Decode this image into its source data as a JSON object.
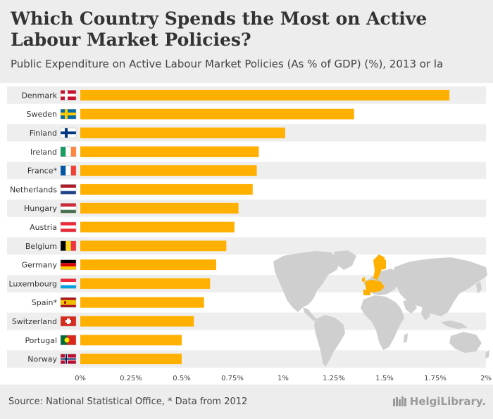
{
  "header": {
    "title": "Which Country Spends the Most on Active Labour Market Policies?",
    "subtitle": "Public Expenditure on Active Labour Market Policies (As % of GDP) (%), 2013 or la"
  },
  "footer": {
    "source": "Source: National Statistical Office, * Data from 2012",
    "brand": "HelgiLibrary."
  },
  "colors": {
    "bar": "#ffb000",
    "stripe": "#eeeeee",
    "map": "#cfcfcf",
    "highlight": "#ffb000"
  },
  "chart_data": {
    "type": "bar",
    "orientation": "horizontal",
    "title": "Which Country Spends the Most on Active Labour Market Policies?",
    "subtitle": "Public Expenditure on Active Labour Market Policies (As % of GDP) (%), 2013 or la",
    "categories": [
      "Denmark",
      "Sweden",
      "Finland",
      "Ireland",
      "France*",
      "Netherlands",
      "Hungary",
      "Austria",
      "Belgium",
      "Germany",
      "Luxembourg",
      "Spain*",
      "Switzerland",
      "Portugal",
      "Norway"
    ],
    "values": [
      1.82,
      1.35,
      1.01,
      0.88,
      0.87,
      0.85,
      0.78,
      0.76,
      0.72,
      0.67,
      0.64,
      0.61,
      0.56,
      0.5,
      0.5
    ],
    "flags": [
      "dk",
      "se",
      "fi",
      "ie",
      "fr",
      "nl",
      "hu",
      "at",
      "be",
      "de",
      "lu",
      "es",
      "ch",
      "pt",
      "no"
    ],
    "xlim": [
      0,
      2
    ],
    "xticks": [
      0,
      0.25,
      0.5,
      0.75,
      1,
      1.25,
      1.5,
      1.75,
      2
    ],
    "xtick_labels": [
      "0%",
      "0.25%",
      "0.5%",
      "0.75%",
      "1%",
      "1.25%",
      "1.5%",
      "1.75%",
      "2%"
    ],
    "xlabel": "",
    "ylabel": ""
  }
}
